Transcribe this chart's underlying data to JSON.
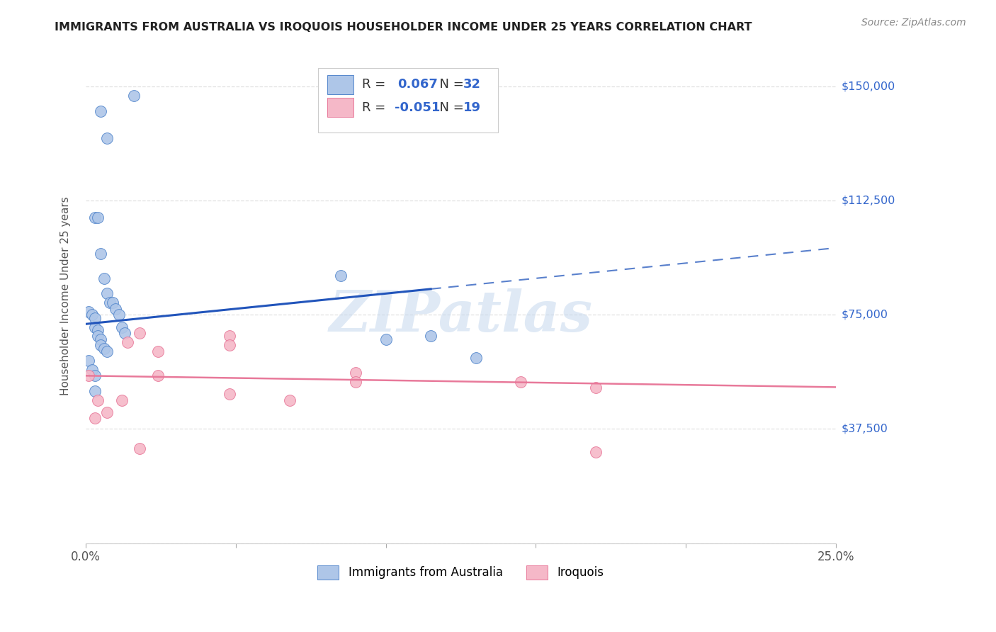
{
  "title": "IMMIGRANTS FROM AUSTRALIA VS IROQUOIS HOUSEHOLDER INCOME UNDER 25 YEARS CORRELATION CHART",
  "source": "Source: ZipAtlas.com",
  "ylabel": "Householder Income Under 25 years",
  "xlim": [
    0.0,
    0.25
  ],
  "ylim": [
    0,
    162500
  ],
  "ytick_vals": [
    0,
    37500,
    75000,
    112500,
    150000
  ],
  "ytick_labels": [
    "",
    "$37,500",
    "$75,000",
    "$112,500",
    "$150,000"
  ],
  "blue_color": "#aec6e8",
  "pink_color": "#f5b8c8",
  "blue_edge_color": "#5588cc",
  "pink_edge_color": "#e8799a",
  "blue_line_color": "#2255bb",
  "pink_line_color": "#e8799a",
  "R_blue": "0.067",
  "N_blue": "32",
  "R_pink": "-0.051",
  "N_pink": "19",
  "legend_label_blue": "Immigrants from Australia",
  "legend_label_pink": "Iroquois",
  "blue_scatter_x": [
    0.005,
    0.007,
    0.016,
    0.003,
    0.004,
    0.005,
    0.006,
    0.007,
    0.008,
    0.009,
    0.01,
    0.011,
    0.012,
    0.013,
    0.001,
    0.002,
    0.003,
    0.003,
    0.004,
    0.004,
    0.005,
    0.005,
    0.006,
    0.007,
    0.001,
    0.002,
    0.003,
    0.003,
    0.085,
    0.1,
    0.13,
    0.115
  ],
  "blue_scatter_y": [
    142000,
    133000,
    147000,
    107000,
    107000,
    95000,
    87000,
    82000,
    79000,
    79000,
    77000,
    75000,
    71000,
    69000,
    76000,
    75000,
    74000,
    71000,
    70000,
    68000,
    67000,
    65000,
    64000,
    63000,
    60000,
    57000,
    55000,
    50000,
    88000,
    67000,
    61000,
    68000
  ],
  "pink_scatter_x": [
    0.001,
    0.004,
    0.007,
    0.003,
    0.014,
    0.018,
    0.024,
    0.024,
    0.048,
    0.048,
    0.048,
    0.068,
    0.09,
    0.09,
    0.145,
    0.17,
    0.17,
    0.012,
    0.018
  ],
  "pink_scatter_y": [
    55000,
    47000,
    43000,
    41000,
    66000,
    69000,
    63000,
    55000,
    68000,
    65000,
    49000,
    47000,
    56000,
    53000,
    53000,
    51000,
    30000,
    47000,
    31000
  ],
  "watermark": "ZIPatlas",
  "bg_color": "#ffffff",
  "grid_color": "#dddddd",
  "blue_trend_intercept": 72000,
  "blue_trend_slope": 100000,
  "pink_trend_intercept": 55000,
  "pink_trend_slope": -15000
}
